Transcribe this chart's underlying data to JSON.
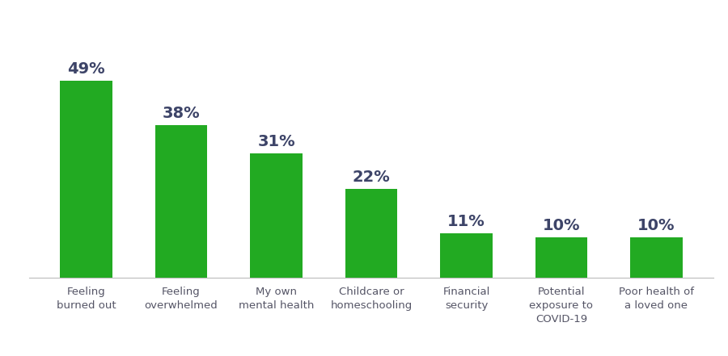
{
  "categories": [
    "Feeling\nburned out",
    "Feeling\noverwhelmed",
    "My own\nmental health",
    "Childcare or\nhomeschooling",
    "Financial\nsecurity",
    "Potential\nexposure to\nCOVID-19",
    "Poor health of\na loved one"
  ],
  "values": [
    49,
    38,
    31,
    22,
    11,
    10,
    10
  ],
  "bar_color": "#22aa22",
  "label_color": "#3d4468",
  "tick_color": "#555566",
  "background_color": "#ffffff",
  "label_fontsize": 14,
  "tick_fontsize": 9.5,
  "bar_width": 0.55,
  "ylim": [
    0,
    62
  ],
  "figsize": [
    9.0,
    4.41
  ],
  "dpi": 100
}
